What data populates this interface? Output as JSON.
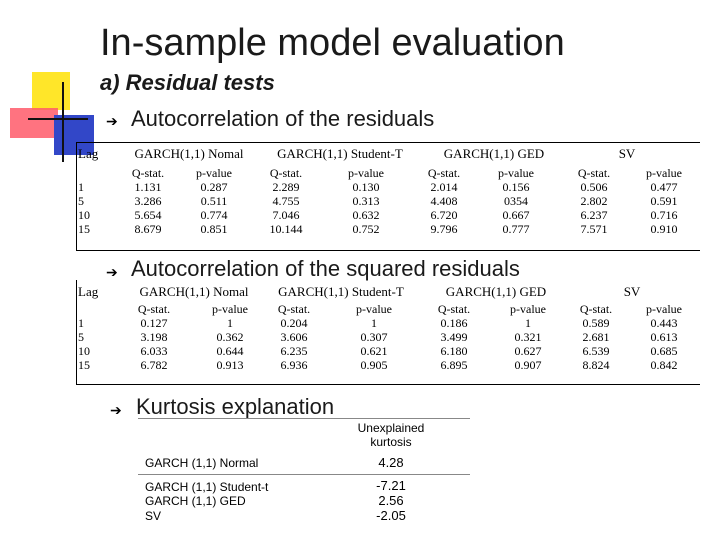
{
  "slide": {
    "title": "In-sample model evaluation",
    "subtitle": "a) Residual tests",
    "bullet_glyph": "➔",
    "bullets": [
      "Autocorrelation of the residuals",
      "Autocorrelation of the squared residuals",
      "Kurtosis explanation"
    ]
  },
  "table1": {
    "lag_header": "Lag",
    "models": [
      "GARCH(1,1) Nomal",
      "GARCH(1,1) Student-T",
      "GARCH(1,1) GED",
      "SV"
    ],
    "subheaders": [
      "Q-stat.",
      "p-value"
    ],
    "rows": [
      {
        "lag": "1",
        "vals": [
          "1.131",
          "0.287",
          "2.289",
          "0.130",
          "2.014",
          "0.156",
          "0.506",
          "0.477"
        ]
      },
      {
        "lag": "5",
        "vals": [
          "3.286",
          "0.511",
          "4.755",
          "0.313",
          "4.408",
          "0354",
          "2.802",
          "0.591"
        ]
      },
      {
        "lag": "10",
        "vals": [
          "5.654",
          "0.774",
          "7.046",
          "0.632",
          "6.720",
          "0.667",
          "6.237",
          "0.716"
        ]
      },
      {
        "lag": "15",
        "vals": [
          "8.679",
          "0.851",
          "10.144",
          "0.752",
          "9.796",
          "0.777",
          "7.571",
          "0.910"
        ]
      }
    ]
  },
  "table2": {
    "lag_header": "Lag",
    "models": [
      "GARCH(1,1) Nomal",
      "GARCH(1,1) Student-T",
      "GARCH(1,1) GED",
      "SV"
    ],
    "subheaders": [
      "Q-stat.",
      "p-value"
    ],
    "rows": [
      {
        "lag": "1",
        "vals": [
          "0.127",
          "1",
          "0.204",
          "1",
          "0.186",
          "1",
          "0.589",
          "0.443"
        ]
      },
      {
        "lag": "5",
        "vals": [
          "3.198",
          "0.362",
          "3.606",
          "0.307",
          "3.499",
          "0.321",
          "2.681",
          "0.613"
        ]
      },
      {
        "lag": "10",
        "vals": [
          "6.033",
          "0.644",
          "6.235",
          "0.621",
          "6.180",
          "0.627",
          "6.539",
          "0.685"
        ]
      },
      {
        "lag": "15",
        "vals": [
          "6.782",
          "0.913",
          "6.936",
          "0.905",
          "6.895",
          "0.907",
          "8.824",
          "0.842"
        ]
      }
    ]
  },
  "kurtosis": {
    "header": "Unexplained kurtosis",
    "rows": [
      {
        "model": "GARCH (1,1) Normal",
        "value": "4.28"
      },
      {
        "model": "GARCH (1,1) Student-t",
        "value": "-7.21"
      },
      {
        "model": "GARCH (1,1) GED",
        "value": "2.56"
      },
      {
        "model": "SV",
        "value": "-2.05"
      }
    ]
  }
}
